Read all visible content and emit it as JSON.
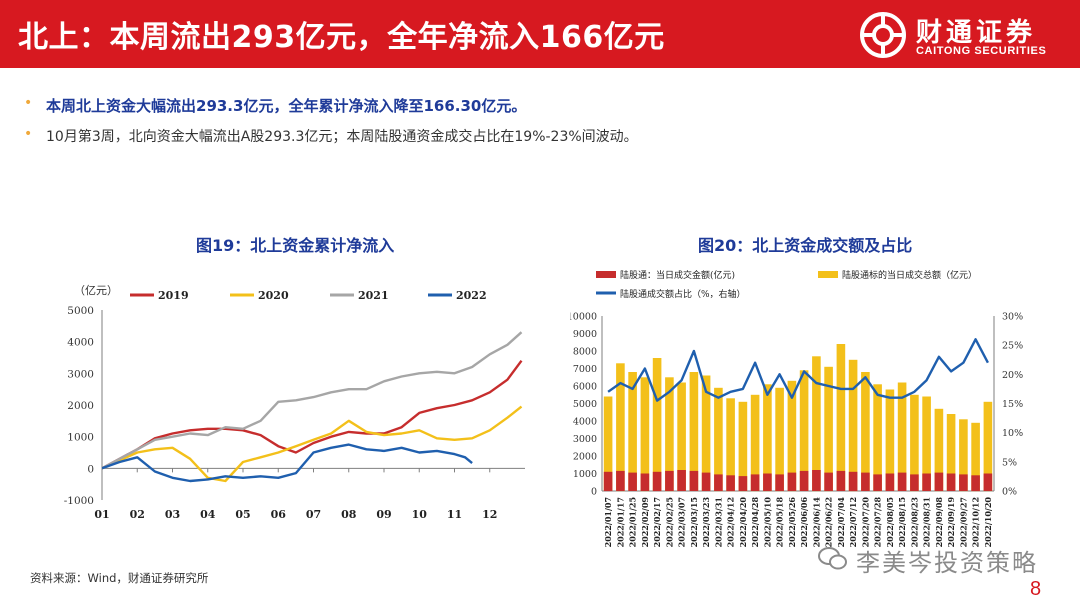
{
  "header": {
    "title": "北上：本周流出293亿元，全年净流入166亿元",
    "brand_cn": "财通证券",
    "brand_en": "CAITONG SECURITIES",
    "bg_color": "#d71920"
  },
  "bullets": [
    "本周北上资金大幅流出293.3亿元，全年累计净流入降至166.30亿元。",
    "10月第3周，北向资金大幅流出A股293.3亿元；本周陆股通资金成交占比在19%-23%间波动。"
  ],
  "chart_data": [
    {
      "type": "line",
      "title": "图19：北上资金累计净流入",
      "unit_label": "（亿元）",
      "x_ticks": [
        "01",
        "02",
        "03",
        "04",
        "05",
        "06",
        "07",
        "08",
        "09",
        "10",
        "11",
        "12"
      ],
      "ylim": [
        -1000,
        5000
      ],
      "y_ticks": [
        -1000,
        0,
        1000,
        2000,
        3000,
        4000,
        5000
      ],
      "series": [
        {
          "name": "2019",
          "color": "#c62d2d",
          "x": [
            0,
            0.5,
            1,
            1.5,
            2,
            2.5,
            3,
            3.5,
            4,
            4.5,
            5,
            5.5,
            6,
            6.5,
            7,
            7.5,
            8,
            8.5,
            9,
            9.5,
            10,
            10.5,
            11,
            11.5,
            11.9
          ],
          "values": [
            0,
            300,
            600,
            950,
            1100,
            1200,
            1250,
            1250,
            1200,
            1050,
            700,
            500,
            800,
            1000,
            1150,
            1100,
            1100,
            1300,
            1750,
            1900,
            2000,
            2150,
            2400,
            2800,
            3400
          ]
        },
        {
          "name": "2020",
          "color": "#f3c01a",
          "x": [
            0,
            0.5,
            1,
            1.5,
            2,
            2.5,
            3,
            3.5,
            4,
            4.5,
            5,
            5.5,
            6,
            6.5,
            7,
            7.5,
            8,
            8.5,
            9,
            9.5,
            10,
            10.5,
            11,
            11.5,
            11.9
          ],
          "values": [
            0,
            250,
            500,
            600,
            650,
            300,
            -300,
            -400,
            200,
            350,
            500,
            700,
            900,
            1100,
            1500,
            1150,
            1050,
            1100,
            1200,
            950,
            900,
            950,
            1200,
            1600,
            1950
          ]
        },
        {
          "name": "2021",
          "color": "#a6a6a6",
          "x": [
            0,
            0.5,
            1,
            1.5,
            2,
            2.5,
            3,
            3.5,
            4,
            4.5,
            5,
            5.5,
            6,
            6.5,
            7,
            7.5,
            8,
            8.5,
            9,
            9.5,
            10,
            10.5,
            11,
            11.5,
            11.9
          ],
          "values": [
            0,
            300,
            600,
            900,
            1000,
            1100,
            1050,
            1300,
            1250,
            1500,
            2100,
            2150,
            2250,
            2400,
            2500,
            2500,
            2750,
            2900,
            3000,
            3050,
            3000,
            3200,
            3600,
            3900,
            4300
          ]
        },
        {
          "name": "2022",
          "color": "#1f5fae",
          "x": [
            0,
            0.5,
            1,
            1.5,
            2,
            2.5,
            3,
            3.5,
            4,
            4.5,
            5,
            5.5,
            6,
            6.5,
            7,
            7.5,
            8,
            8.5,
            9,
            9.5,
            10,
            10.3,
            10.5
          ],
          "values": [
            0,
            200,
            350,
            -100,
            -300,
            -400,
            -350,
            -250,
            -300,
            -250,
            -300,
            -150,
            500,
            650,
            750,
            600,
            550,
            650,
            500,
            550,
            450,
            350,
            166
          ]
        }
      ]
    },
    {
      "type": "bar",
      "title": "图20：北上资金成交额及占比",
      "legend": {
        "s1": "陆股通：当日成交金额(亿元)",
        "s2": "陆股通标的当日成交总额（亿元）",
        "s3": "陆股通成交额占比（%，右轴）"
      },
      "colors": {
        "s1": "#c62d2d",
        "s2": "#f3c01a",
        "s3": "#1f5fae"
      },
      "ylim": [
        0,
        10000
      ],
      "y_ticks": [
        0,
        1000,
        2000,
        3000,
        4000,
        5000,
        6000,
        7000,
        8000,
        9000,
        10000
      ],
      "y2_ticks": [
        "0%",
        "5%",
        "10%",
        "15%",
        "20%",
        "25%",
        "30%"
      ],
      "x_ticks": [
        "2022/01/07",
        "2022/01/17",
        "2022/01/25",
        "2022/02/09",
        "2022/02/17",
        "2022/02/25",
        "2022/03/07",
        "2022/03/15",
        "2022/03/23",
        "2022/03/31",
        "2022/04/12",
        "2022/04/20",
        "2022/04/28",
        "2022/05/10",
        "2022/05/18",
        "2022/05/26",
        "2022/06/06",
        "2022/06/14",
        "2022/06/22",
        "2022/07/04",
        "2022/07/12",
        "2022/07/20",
        "2022/07/28",
        "2022/08/05",
        "2022/08/15",
        "2022/08/23",
        "2022/08/31",
        "2022/09/08",
        "2022/09/19",
        "2022/09/27",
        "2022/10/12",
        "2022/10/20"
      ],
      "total_turnover": [
        5400,
        7300,
        6800,
        6500,
        7600,
        6500,
        6200,
        6800,
        6600,
        5900,
        5300,
        5100,
        5500,
        6100,
        5900,
        6300,
        6900,
        7700,
        7100,
        8400,
        7500,
        6800,
        6100,
        5800,
        6200,
        5500,
        5400,
        4700,
        4400,
        4100,
        3900,
        5100
      ],
      "northbound_turnover": [
        1100,
        1150,
        1050,
        1000,
        1100,
        1150,
        1200,
        1150,
        1050,
        950,
        900,
        850,
        950,
        1000,
        950,
        1050,
        1150,
        1200,
        1050,
        1150,
        1100,
        1050,
        950,
        1000,
        1050,
        950,
        1000,
        1050,
        1000,
        950,
        900,
        1000
      ],
      "ratio_pct": [
        17,
        18.5,
        17.5,
        21,
        15.5,
        17,
        19,
        24,
        17,
        16,
        17,
        17.5,
        22,
        16.5,
        20,
        16,
        20.5,
        18.5,
        18,
        17.5,
        17.5,
        19.5,
        16.5,
        16,
        16,
        17,
        19,
        23,
        20.5,
        22,
        26,
        22
      ]
    }
  ],
  "source": "资料来源：Wind，财通证券研究所",
  "watermark": "李美岑投资策略",
  "page_number": "8"
}
